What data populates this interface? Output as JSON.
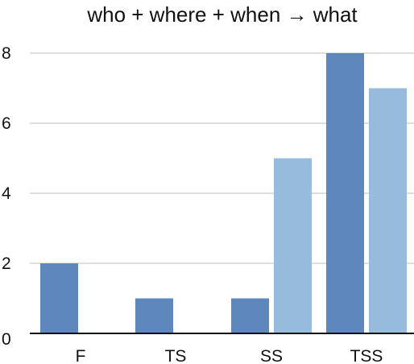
{
  "chart_data": {
    "type": "bar",
    "title": "who + where + when → what",
    "xlabel": "",
    "ylabel": "",
    "categories": [
      "F",
      "TS",
      "SS",
      "TSS"
    ],
    "series": [
      {
        "values": [
          2,
          1,
          1,
          8
        ],
        "color": "#5e87bd"
      },
      {
        "values": [
          0,
          0,
          5,
          7
        ],
        "color": "#97bbdd"
      }
    ],
    "ylim": [
      0,
      8
    ],
    "yticks": [
      0,
      2,
      4,
      6,
      8
    ],
    "grid": true,
    "legend": "none"
  }
}
